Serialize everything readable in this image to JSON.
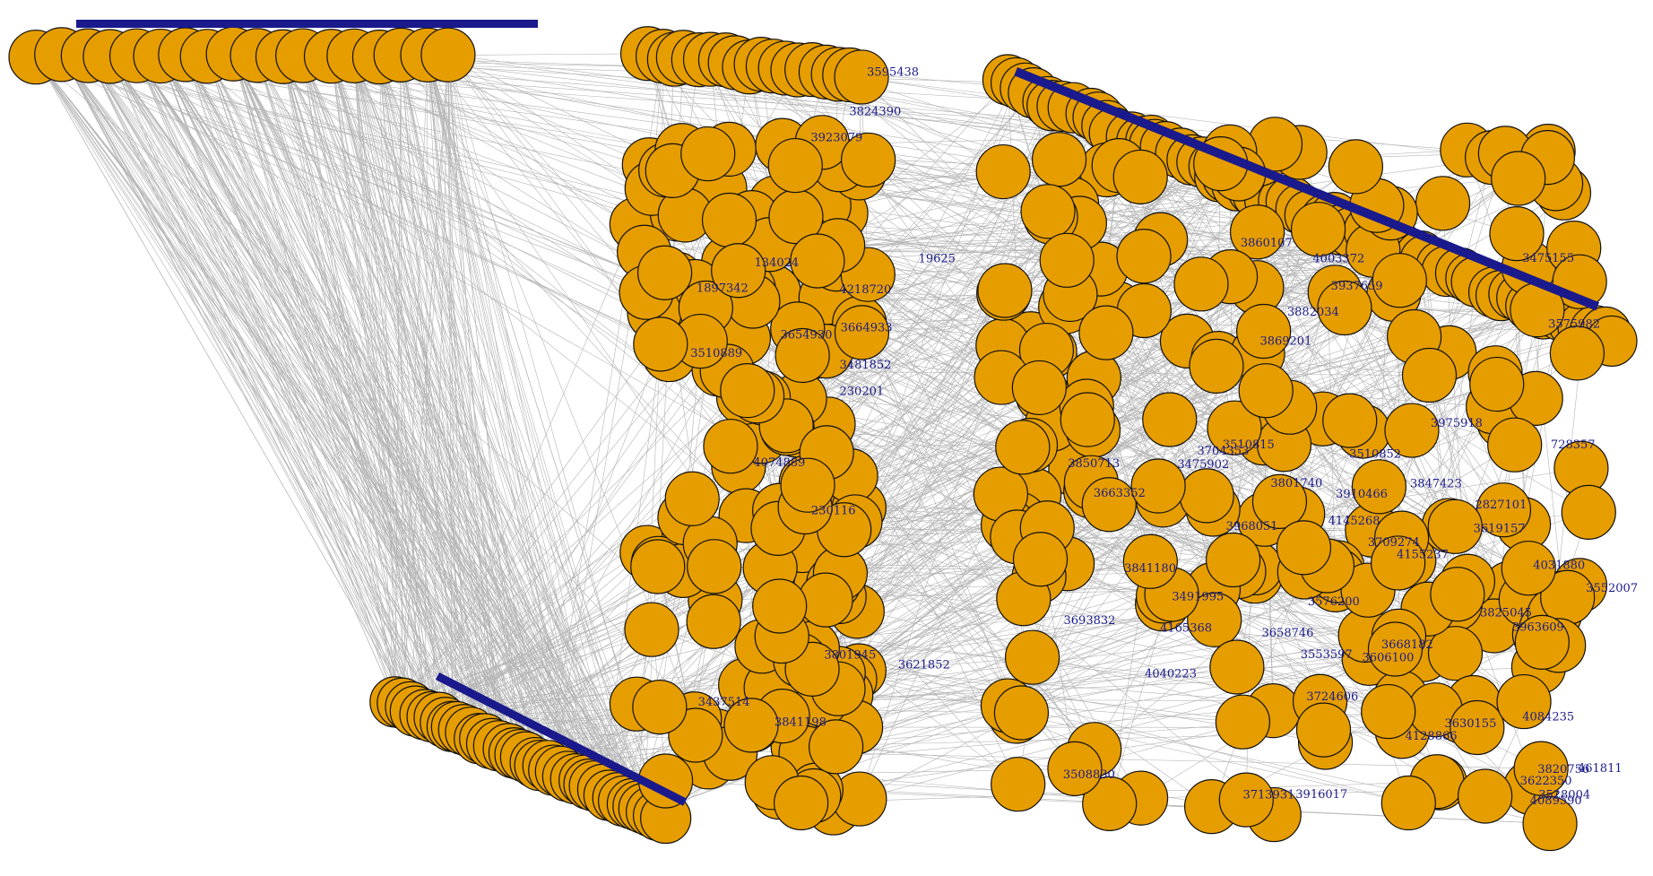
{
  "colors": {
    "node_fill": "#e69d00",
    "node_stroke": "#111111",
    "edge": "#b4b4b4",
    "label": "#1a1a8c",
    "background": "#ffffff"
  },
  "labels": {
    "col2_top": [
      "3824390",
      "3923079",
      "3595438"
    ],
    "col2_main": [
      "3841198",
      "4218720",
      "19625",
      "230116",
      "230201",
      "3437514",
      "3621852",
      "3664933",
      "1897342",
      "3801945",
      "4074889",
      "3481852",
      "134024",
      "3510889",
      "3654930"
    ],
    "col3": [
      "3528004",
      "3553597",
      "461811",
      "3937659",
      "3619157",
      "3491995",
      "3916017",
      "3801740",
      "4084235",
      "3658746",
      "3475155",
      "728357",
      "3475902",
      "3724606",
      "3622350",
      "3910466",
      "3693832",
      "3850713",
      "3847423",
      "4128866",
      "3825045",
      "4145268",
      "4155237",
      "3704353",
      "3576200",
      "3860107",
      "3975918",
      "4089590",
      "3820756",
      "3968051",
      "3575982",
      "2827101",
      "3869201",
      "3552007",
      "3882034",
      "3508830",
      "3668182",
      "3510852",
      "3663352",
      "3963609",
      "4003372",
      "3713931",
      "3709274",
      "3841180",
      "3510815",
      "3630155",
      "3606100",
      "4165368",
      "4031880",
      "4040223"
    ]
  }
}
